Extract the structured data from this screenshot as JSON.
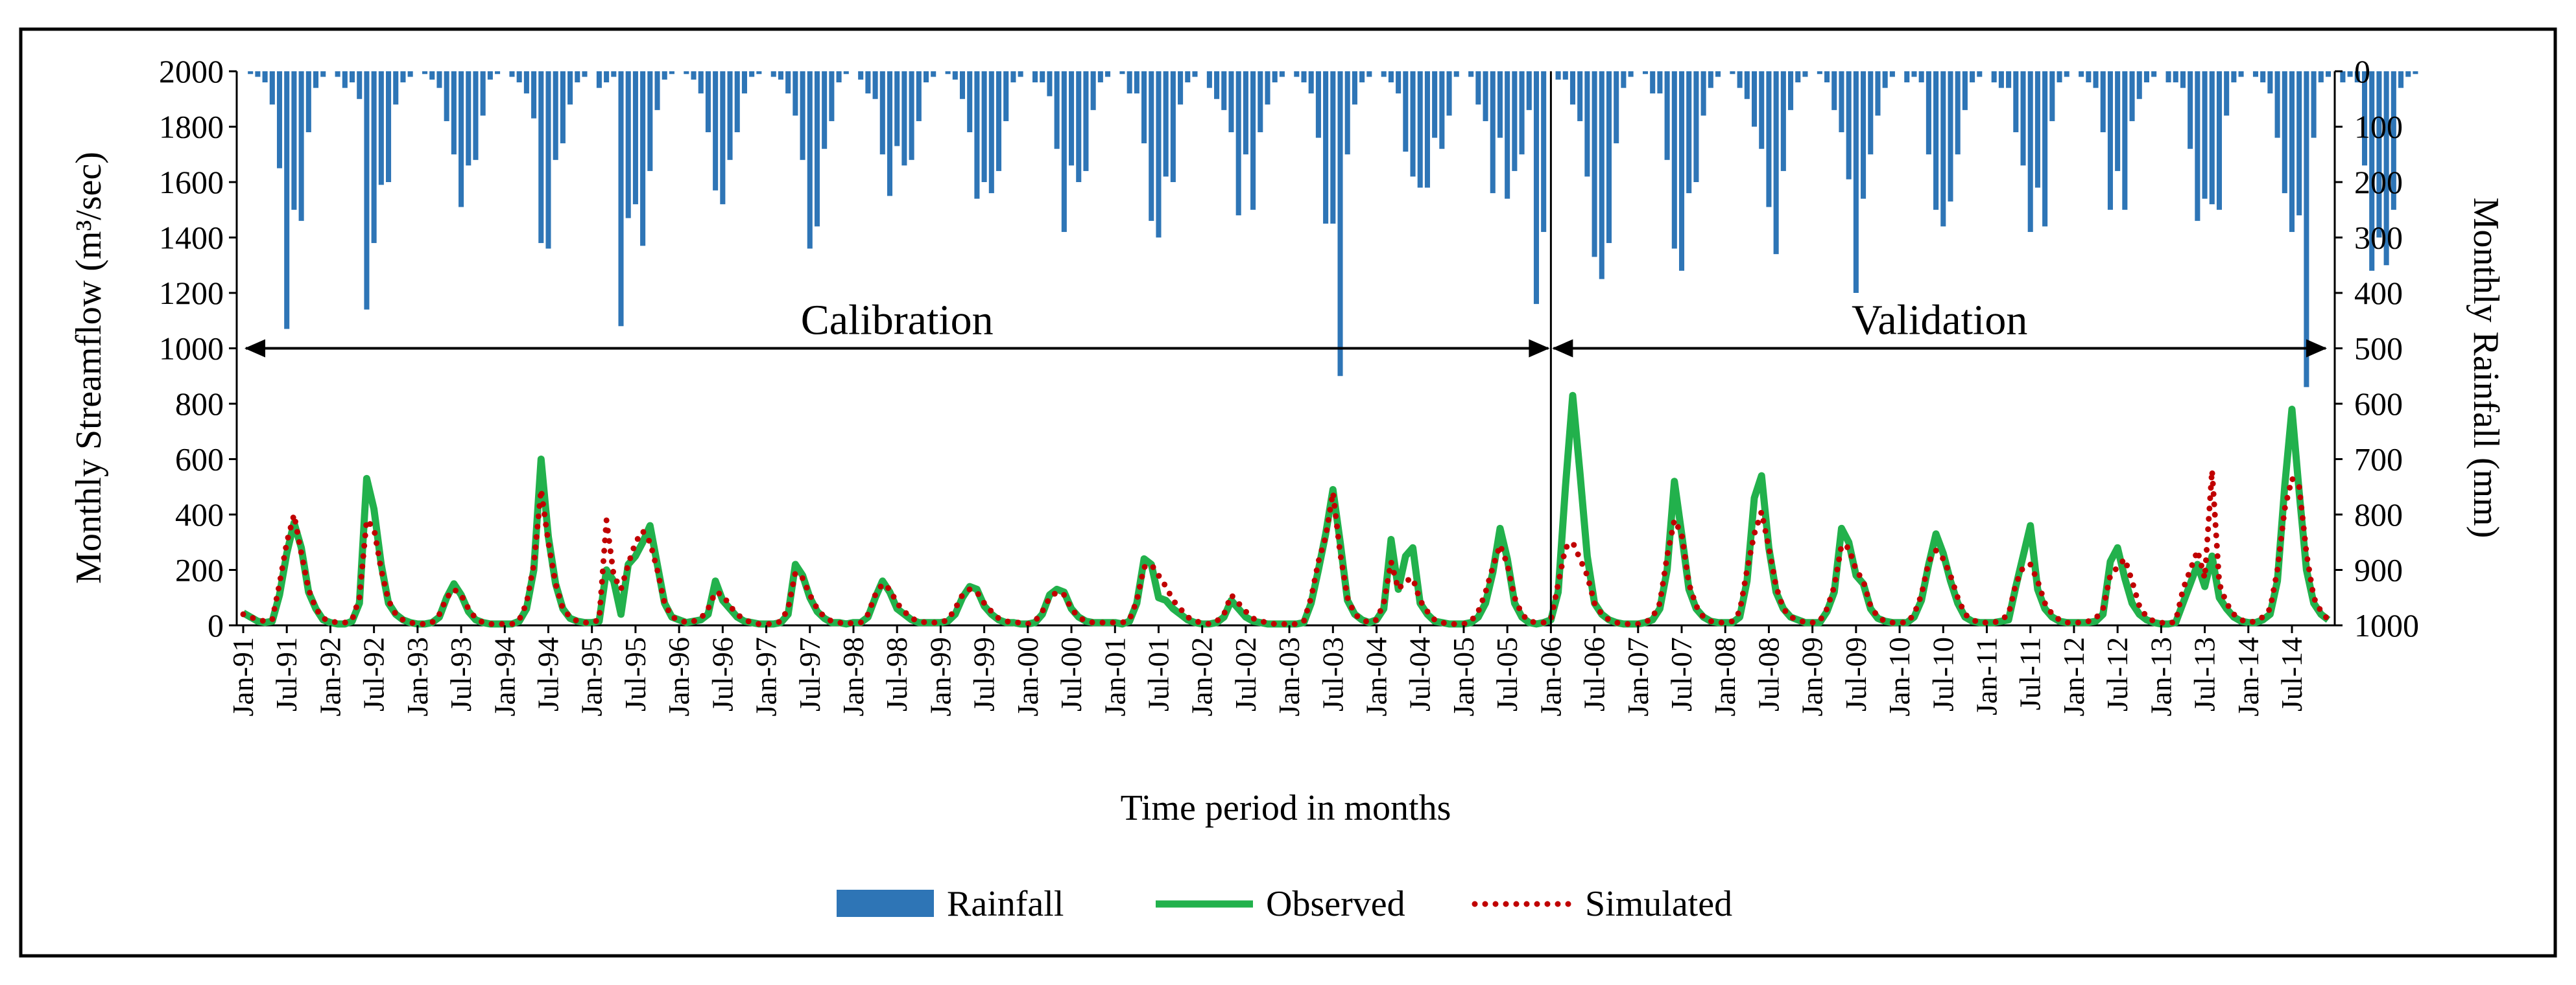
{
  "chart_data": {
    "type": "bar+line",
    "title": "",
    "xlabel": "Time period in months",
    "ylabel_left": "Monthly  Streamflow  (m³/sec)",
    "ylabel_right": "Monthly  Rainfall  (mm)",
    "ylim_left": [
      0,
      2000
    ],
    "ylim_right": [
      0,
      1000
    ],
    "right_axis_inverted": true,
    "left_ticks": [
      0,
      200,
      400,
      600,
      800,
      1000,
      1200,
      1400,
      1600,
      1800,
      2000
    ],
    "right_ticks": [
      0,
      100,
      200,
      300,
      400,
      500,
      600,
      700,
      800,
      900,
      1000
    ],
    "x_tick_labels": [
      "Jan-91",
      "Jul-91",
      "Jan-92",
      "Jul-92",
      "Jan-93",
      "Jul-93",
      "Jan-94",
      "Jul-94",
      "Jan-95",
      "Jul-95",
      "Jan-96",
      "Jul-96",
      "Jan-97",
      "Jul-97",
      "Jan-98",
      "Jul-98",
      "Jan-99",
      "Jul-99",
      "Jan-00",
      "Jul-00",
      "Jan-01",
      "Jul-01",
      "Jan-02",
      "Jul-02",
      "Jan-03",
      "Jul-03",
      "Jan-04",
      "Jul-04",
      "Jan-05",
      "Jul-05",
      "Jan-06",
      "Jul-06",
      "Jan-07",
      "Jul-07",
      "Jan-08",
      "Jul-08",
      "Jan-09",
      "Jul-09",
      "Jan-10",
      "Jul-10",
      "Jan-11",
      "Jul-11",
      "Jan-12",
      "Jul-12",
      "Jan-13",
      "Jul-13",
      "Jan-14",
      "Jul-14"
    ],
    "n_months": 288,
    "legend": {
      "placement": "bottom",
      "entries": [
        {
          "label": "Rainfall",
          "style": "bar"
        },
        {
          "label": "Observed",
          "style": "solid"
        },
        {
          "label": "Simulated",
          "style": "dotted"
        }
      ]
    },
    "periods": [
      {
        "label": "Calibration",
        "start_month": 0,
        "end_month": 180
      },
      {
        "label": "Validation",
        "start_month": 180,
        "end_month": 288
      }
    ],
    "divider_month": 180,
    "arrow_level": 1000,
    "colors": {
      "rainfall": "#2e75b6",
      "observed": "#22b14c",
      "simulated": "#c00000"
    },
    "series": [
      {
        "name": "Rainfall",
        "axis": "right",
        "values": [
          0,
          5,
          10,
          20,
          60,
          175,
          465,
          250,
          270,
          110,
          30,
          10,
          0,
          10,
          30,
          20,
          50,
          430,
          310,
          205,
          200,
          60,
          20,
          10,
          0,
          5,
          15,
          30,
          90,
          150,
          245,
          170,
          160,
          80,
          15,
          5,
          0,
          10,
          20,
          40,
          85,
          310,
          320,
          160,
          130,
          60,
          20,
          10,
          0,
          30,
          20,
          10,
          460,
          265,
          240,
          315,
          180,
          70,
          15,
          5,
          0,
          5,
          15,
          40,
          110,
          215,
          240,
          160,
          110,
          40,
          10,
          5,
          0,
          10,
          15,
          40,
          80,
          160,
          320,
          280,
          140,
          90,
          20,
          5,
          0,
          15,
          40,
          50,
          150,
          225,
          135,
          170,
          160,
          90,
          20,
          10,
          0,
          5,
          15,
          50,
          110,
          230,
          200,
          220,
          180,
          90,
          20,
          10,
          0,
          20,
          20,
          45,
          140,
          290,
          170,
          200,
          180,
          70,
          20,
          10,
          0,
          5,
          40,
          40,
          130,
          270,
          300,
          190,
          200,
          60,
          20,
          10,
          0,
          30,
          50,
          70,
          110,
          260,
          150,
          250,
          110,
          60,
          20,
          10,
          0,
          10,
          20,
          40,
          120,
          275,
          275,
          550,
          150,
          60,
          20,
          10,
          0,
          10,
          20,
          40,
          145,
          190,
          210,
          210,
          120,
          140,
          80,
          10,
          0,
          10,
          60,
          90,
          220,
          120,
          230,
          180,
          150,
          70,
          420,
          290,
          0,
          15,
          15,
          60,
          90,
          190,
          335,
          375,
          310,
          130,
          30,
          10,
          0,
          5,
          40,
          40,
          160,
          320,
          360,
          220,
          200,
          80,
          30,
          10,
          0,
          5,
          30,
          50,
          100,
          140,
          245,
          330,
          180,
          70,
          20,
          10,
          0,
          5,
          20,
          70,
          110,
          195,
          400,
          230,
          150,
          80,
          30,
          10,
          0,
          20,
          10,
          20,
          150,
          250,
          280,
          235,
          150,
          70,
          20,
          10,
          0,
          20,
          30,
          30,
          110,
          170,
          290,
          210,
          280,
          90,
          20,
          10,
          0,
          10,
          20,
          30,
          110,
          250,
          180,
          250,
          90,
          50,
          20,
          10,
          0,
          20,
          20,
          30,
          140,
          270,
          230,
          240,
          250,
          80,
          20,
          10,
          0,
          10,
          20,
          40,
          120,
          220,
          290,
          260,
          570,
          120,
          20,
          10,
          0,
          20,
          10,
          20,
          170,
          360,
          300,
          350,
          250,
          30,
          10,
          5
        ]
      },
      {
        "name": "Observed",
        "axis": "left",
        "values": [
          45,
          30,
          15,
          10,
          15,
          110,
          260,
          370,
          280,
          120,
          60,
          20,
          10,
          5,
          5,
          15,
          80,
          530,
          420,
          220,
          80,
          40,
          20,
          10,
          5,
          5,
          10,
          30,
          100,
          150,
          110,
          50,
          20,
          10,
          5,
          5,
          5,
          5,
          15,
          60,
          200,
          600,
          320,
          150,
          60,
          25,
          15,
          10,
          10,
          15,
          200,
          160,
          40,
          220,
          250,
          300,
          360,
          220,
          80,
          30,
          20,
          10,
          15,
          20,
          40,
          160,
          90,
          60,
          30,
          15,
          10,
          5,
          5,
          5,
          10,
          40,
          220,
          180,
          100,
          50,
          25,
          10,
          10,
          5,
          10,
          10,
          30,
          100,
          160,
          120,
          60,
          40,
          20,
          10,
          10,
          10,
          10,
          15,
          40,
          100,
          140,
          130,
          70,
          40,
          20,
          10,
          10,
          5,
          5,
          10,
          40,
          110,
          130,
          120,
          60,
          30,
          15,
          10,
          10,
          10,
          10,
          5,
          15,
          80,
          240,
          220,
          100,
          90,
          60,
          40,
          20,
          10,
          5,
          5,
          10,
          30,
          90,
          60,
          30,
          15,
          10,
          5,
          5,
          5,
          5,
          5,
          10,
          80,
          200,
          330,
          490,
          300,
          90,
          40,
          20,
          10,
          20,
          60,
          310,
          130,
          250,
          280,
          80,
          40,
          15,
          10,
          5,
          5,
          5,
          10,
          30,
          80,
          190,
          350,
          240,
          80,
          30,
          10,
          5,
          10,
          20,
          120,
          500,
          830,
          550,
          250,
          80,
          40,
          20,
          10,
          5,
          5,
          5,
          10,
          20,
          60,
          200,
          520,
          330,
          130,
          60,
          30,
          15,
          10,
          10,
          10,
          30,
          160,
          460,
          540,
          280,
          120,
          60,
          30,
          20,
          10,
          10,
          10,
          50,
          120,
          350,
          300,
          180,
          150,
          60,
          25,
          15,
          10,
          10,
          10,
          30,
          90,
          220,
          330,
          260,
          160,
          80,
          30,
          15,
          10,
          10,
          10,
          15,
          20,
          140,
          250,
          360,
          130,
          60,
          30,
          15,
          10,
          10,
          10,
          10,
          15,
          40,
          230,
          280,
          170,
          80,
          40,
          20,
          10,
          5,
          5,
          10,
          80,
          150,
          220,
          140,
          250,
          100,
          60,
          30,
          15,
          10,
          10,
          20,
          40,
          160,
          500,
          780,
          480,
          200,
          80,
          40,
          20
        ]
      },
      {
        "name": "Simulated",
        "axis": "left",
        "values": [
          40,
          30,
          20,
          15,
          20,
          150,
          300,
          400,
          260,
          130,
          60,
          25,
          15,
          10,
          10,
          20,
          100,
          380,
          350,
          200,
          90,
          40,
          20,
          10,
          5,
          5,
          10,
          40,
          100,
          130,
          110,
          60,
          25,
          10,
          5,
          5,
          5,
          5,
          20,
          80,
          220,
          490,
          300,
          150,
          60,
          30,
          15,
          10,
          10,
          20,
          380,
          180,
          130,
          220,
          300,
          340,
          300,
          200,
          80,
          30,
          20,
          10,
          15,
          25,
          60,
          120,
          110,
          70,
          40,
          20,
          10,
          5,
          5,
          5,
          15,
          60,
          190,
          170,
          110,
          60,
          30,
          15,
          10,
          5,
          10,
          10,
          40,
          110,
          150,
          130,
          80,
          50,
          25,
          15,
          10,
          10,
          10,
          20,
          60,
          110,
          130,
          120,
          80,
          50,
          25,
          15,
          10,
          10,
          5,
          15,
          50,
          100,
          120,
          110,
          60,
          30,
          15,
          10,
          10,
          10,
          10,
          10,
          20,
          90,
          210,
          220,
          180,
          140,
          90,
          60,
          30,
          15,
          10,
          5,
          15,
          40,
          110,
          80,
          50,
          25,
          15,
          10,
          5,
          5,
          5,
          5,
          15,
          100,
          230,
          320,
          480,
          260,
          100,
          40,
          20,
          10,
          20,
          80,
          230,
          130,
          160,
          170,
          90,
          50,
          20,
          10,
          5,
          5,
          5,
          15,
          50,
          120,
          210,
          290,
          220,
          100,
          40,
          15,
          10,
          10,
          20,
          150,
          280,
          300,
          240,
          180,
          80,
          40,
          20,
          10,
          5,
          5,
          5,
          10,
          30,
          80,
          250,
          380,
          330,
          150,
          70,
          30,
          15,
          10,
          10,
          15,
          50,
          200,
          330,
          410,
          280,
          140,
          60,
          30,
          20,
          10,
          10,
          15,
          60,
          140,
          290,
          280,
          200,
          160,
          70,
          30,
          15,
          10,
          10,
          10,
          40,
          110,
          230,
          270,
          240,
          180,
          100,
          40,
          20,
          10,
          10,
          10,
          20,
          40,
          150,
          210,
          220,
          160,
          80,
          40,
          20,
          10,
          10,
          10,
          15,
          25,
          60,
          180,
          210,
          240,
          160,
          70,
          30,
          15,
          10,
          5,
          15,
          130,
          200,
          270,
          170,
          560,
          150,
          80,
          40,
          20,
          10,
          15,
          30,
          60,
          200,
          420,
          530,
          500,
          260,
          100,
          50,
          20
        ]
      }
    ]
  }
}
